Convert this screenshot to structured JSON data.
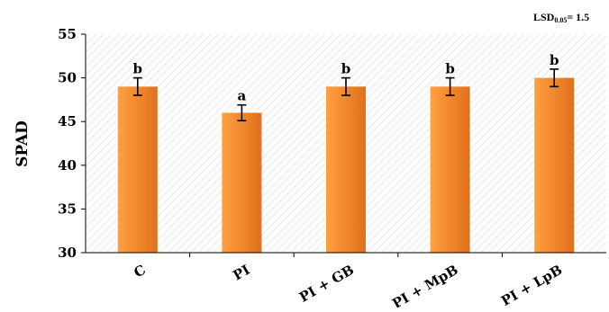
{
  "chart_data": {
    "type": "bar",
    "categories": [
      "C",
      "PI",
      "PI + GB",
      "PI + MpB",
      "PI + LpB"
    ],
    "values": [
      49,
      46,
      49,
      49,
      50
    ],
    "errors": [
      1.0,
      0.9,
      1.0,
      1.0,
      1.0
    ],
    "significance_letters": [
      "b",
      "a",
      "b",
      "b",
      "b"
    ],
    "ylabel": "SPAD",
    "xlabel": "",
    "title": "",
    "ylim": [
      30,
      55
    ],
    "yticks": [
      30,
      35,
      40,
      45,
      50,
      55
    ],
    "annotation": {
      "prefix": "LSD",
      "subscript": "0.05",
      "suffix": "= 1.5"
    },
    "grid": false,
    "legend": "none",
    "colors": {
      "bar_light": "#ffa040",
      "bar_dark": "#e0701c",
      "plot_hatch": "#d9d9d9"
    }
  }
}
